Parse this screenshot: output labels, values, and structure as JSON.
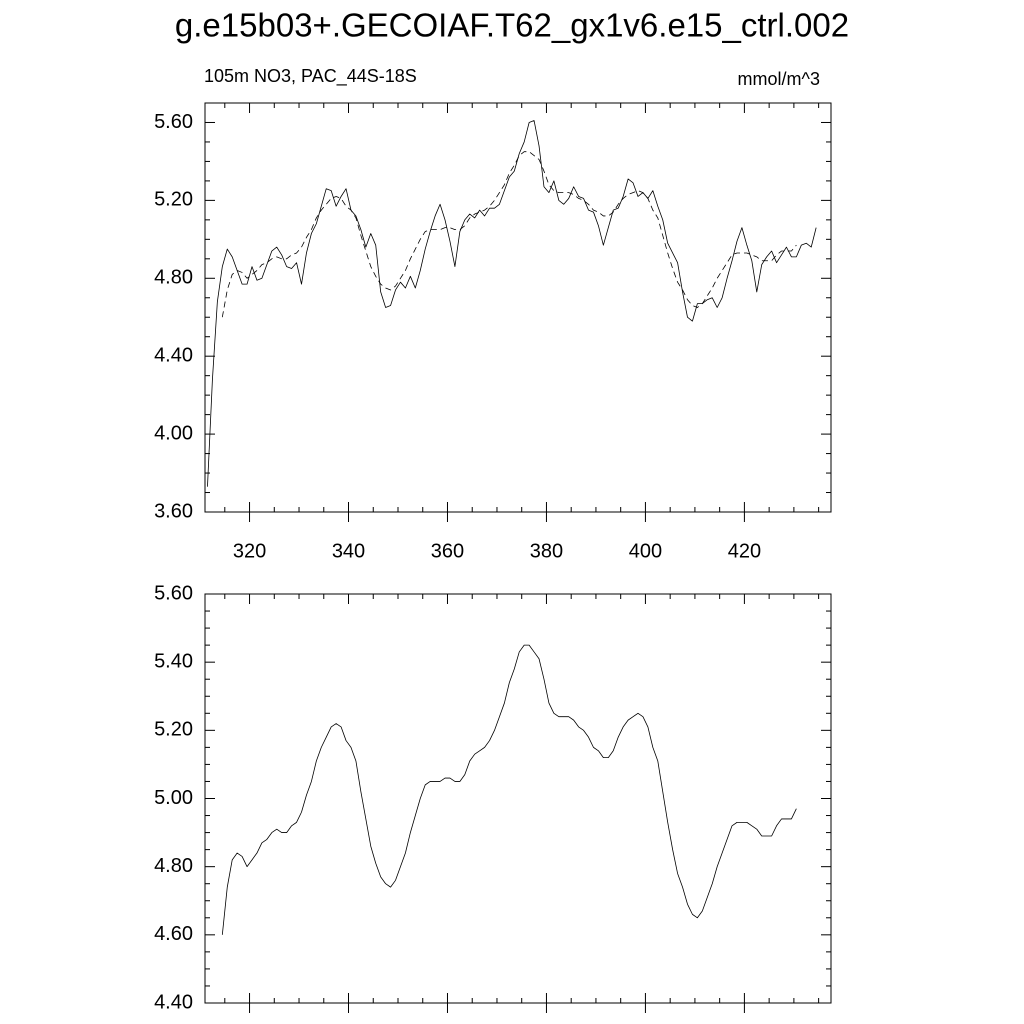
{
  "chart_data": [
    {
      "type": "line",
      "title": "g.e15b03+.GECOIAF.T62_gx1v6.e15_ctrl.002",
      "left_label": "105m NO3, PAC_44S-18S",
      "right_label": "mmol/m^3",
      "xlim": [
        311,
        437.5
      ],
      "ylim": [
        3.6,
        5.7
      ],
      "xticks": [
        320,
        340,
        360,
        380,
        400,
        420
      ],
      "yticks": [
        {
          "value": 3.6,
          "label": "3.60"
        },
        {
          "value": 4.0,
          "label": "4.00"
        },
        {
          "value": 4.4,
          "label": "4.40"
        },
        {
          "value": 4.8,
          "label": "4.80"
        },
        {
          "value": 5.2,
          "label": "5.20"
        },
        {
          "value": 5.6,
          "label": "5.60"
        }
      ],
      "series": [
        {
          "color": "#000000",
          "dashed": false,
          "x": [
            311.5,
            312.5,
            313.5,
            314.5,
            315.5,
            316.5,
            317.5,
            318.5,
            319.5,
            320.5,
            321.5,
            322.5,
            323.5,
            324.5,
            325.5,
            326.5,
            327.5,
            328.5,
            329.5,
            330.5,
            331.5,
            332.5,
            333.5,
            334.5,
            335.5,
            336.5,
            337.5,
            338.5,
            339.5,
            340.5,
            341.5,
            342.5,
            343.5,
            344.5,
            345.5,
            346.5,
            347.5,
            348.5,
            349.5,
            350.5,
            351.5,
            352.5,
            353.5,
            354.5,
            355.5,
            356.5,
            357.5,
            358.5,
            359.5,
            360.5,
            361.5,
            362.5,
            363.5,
            364.5,
            365.5,
            366.5,
            367.5,
            368.5,
            369.5,
            370.5,
            371.5,
            372.5,
            373.5,
            374.5,
            375.5,
            376.5,
            377.5,
            378.5,
            379.5,
            380.5,
            381.5,
            382.5,
            383.5,
            384.5,
            385.5,
            386.5,
            387.5,
            388.5,
            389.5,
            390.5,
            391.5,
            392.5,
            393.5,
            394.5,
            395.5,
            396.5,
            397.5,
            398.5,
            399.5,
            400.5,
            401.5,
            402.5,
            403.5,
            404.5,
            405.5,
            406.5,
            407.5,
            408.5,
            409.5,
            410.5,
            411.5,
            412.5,
            413.5,
            414.5,
            415.5,
            416.5,
            417.5,
            418.5,
            419.5,
            420.5,
            421.5,
            422.5,
            423.5,
            424.5,
            425.5,
            426.5,
            427.5,
            428.5,
            429.5,
            430.5,
            431.5,
            432.5,
            433.5,
            434.5
          ],
          "values": [
            3.73,
            4.28,
            4.68,
            4.86,
            4.95,
            4.91,
            4.84,
            4.77,
            4.77,
            4.86,
            4.79,
            4.8,
            4.87,
            4.94,
            4.96,
            4.92,
            4.86,
            4.85,
            4.88,
            4.77,
            4.93,
            5.03,
            5.08,
            5.17,
            5.26,
            5.25,
            5.17,
            5.22,
            5.26,
            5.15,
            5.12,
            5.05,
            4.96,
            5.03,
            4.97,
            4.73,
            4.65,
            4.66,
            4.74,
            4.78,
            4.75,
            4.81,
            4.75,
            4.84,
            4.95,
            5.04,
            5.12,
            5.18,
            5.1,
            4.99,
            4.86,
            5.04,
            5.1,
            5.13,
            5.11,
            5.15,
            5.12,
            5.16,
            5.16,
            5.18,
            5.25,
            5.32,
            5.35,
            5.44,
            5.5,
            5.6,
            5.61,
            5.48,
            5.27,
            5.24,
            5.3,
            5.2,
            5.18,
            5.21,
            5.27,
            5.22,
            5.21,
            5.15,
            5.14,
            5.07,
            4.97,
            5.06,
            5.15,
            5.16,
            5.22,
            5.31,
            5.29,
            5.22,
            5.24,
            5.21,
            5.25,
            5.17,
            5.1,
            4.98,
            4.93,
            4.88,
            4.73,
            4.6,
            4.58,
            4.67,
            4.67,
            4.69,
            4.7,
            4.65,
            4.7,
            4.8,
            4.89,
            4.99,
            5.06,
            4.97,
            4.89,
            4.73,
            4.87,
            4.91,
            4.94,
            4.88,
            4.92,
            4.96,
            4.91,
            4.91,
            4.97,
            4.98,
            4.96,
            5.06
          ]
        },
        {
          "color": "#000000",
          "dashed": true,
          "x": [
            314.5,
            315.5,
            316.5,
            317.5,
            318.5,
            319.5,
            320.5,
            321.5,
            322.5,
            323.5,
            324.5,
            325.5,
            326.5,
            327.5,
            328.5,
            329.5,
            330.5,
            331.5,
            332.5,
            333.5,
            334.5,
            335.5,
            336.5,
            337.5,
            338.5,
            339.5,
            340.5,
            341.5,
            342.5,
            343.5,
            344.5,
            345.5,
            346.5,
            347.5,
            348.5,
            349.5,
            350.5,
            351.5,
            352.5,
            353.5,
            354.5,
            355.5,
            356.5,
            357.5,
            358.5,
            359.5,
            360.5,
            361.5,
            362.5,
            363.5,
            364.5,
            365.5,
            366.5,
            367.5,
            368.5,
            369.5,
            370.5,
            371.5,
            372.5,
            373.5,
            374.5,
            375.5,
            376.5,
            377.5,
            378.5,
            379.5,
            380.5,
            381.5,
            382.5,
            383.5,
            384.5,
            385.5,
            386.5,
            387.5,
            388.5,
            389.5,
            390.5,
            391.5,
            392.5,
            393.5,
            394.5,
            395.5,
            396.5,
            397.5,
            398.5,
            399.5,
            400.5,
            401.5,
            402.5,
            403.5,
            404.5,
            405.5,
            406.5,
            407.5,
            408.5,
            409.5,
            410.5,
            411.5,
            412.5,
            413.5,
            414.5,
            415.5,
            416.5,
            417.5,
            418.5,
            419.5,
            420.5,
            421.5,
            422.5,
            423.5,
            424.5,
            425.5,
            426.5,
            427.5,
            428.5,
            429.5,
            430.5
          ],
          "values": [
            4.6,
            4.74,
            4.82,
            4.84,
            4.83,
            4.8,
            4.82,
            4.84,
            4.87,
            4.88,
            4.9,
            4.91,
            4.9,
            4.9,
            4.92,
            4.93,
            4.96,
            5.01,
            5.05,
            5.11,
            5.15,
            5.18,
            5.21,
            5.22,
            5.21,
            5.17,
            5.15,
            5.11,
            5.02,
            4.94,
            4.86,
            4.81,
            4.77,
            4.75,
            4.74,
            4.76,
            4.8,
            4.84,
            4.9,
            4.95,
            5.0,
            5.04,
            5.05,
            5.05,
            5.05,
            5.06,
            5.06,
            5.05,
            5.05,
            5.07,
            5.11,
            5.13,
            5.14,
            5.15,
            5.17,
            5.2,
            5.24,
            5.28,
            5.34,
            5.38,
            5.43,
            5.45,
            5.45,
            5.43,
            5.41,
            5.35,
            5.28,
            5.25,
            5.24,
            5.24,
            5.24,
            5.23,
            5.21,
            5.2,
            5.18,
            5.15,
            5.14,
            5.12,
            5.12,
            5.14,
            5.18,
            5.21,
            5.23,
            5.24,
            5.25,
            5.24,
            5.21,
            5.15,
            5.11,
            5.02,
            4.93,
            4.85,
            4.78,
            4.74,
            4.69,
            4.66,
            4.65,
            4.67,
            4.71,
            4.75,
            4.8,
            4.84,
            4.88,
            4.92,
            4.93,
            4.93,
            4.93,
            4.92,
            4.91,
            4.89,
            4.89,
            4.89,
            4.92,
            4.94,
            4.94,
            4.94,
            4.97
          ]
        }
      ]
    },
    {
      "type": "line",
      "xlim": [
        311,
        437.5
      ],
      "ylim": [
        4.4,
        5.6
      ],
      "xticks": [
        320,
        340,
        360,
        380,
        400,
        420
      ],
      "x_tick_labels": false,
      "yticks": [
        {
          "value": 4.4,
          "label": "4.40"
        },
        {
          "value": 4.6,
          "label": "4.60"
        },
        {
          "value": 4.8,
          "label": "4.80"
        },
        {
          "value": 5.0,
          "label": "5.00"
        },
        {
          "value": 5.2,
          "label": "5.20"
        },
        {
          "value": 5.4,
          "label": "5.40"
        },
        {
          "value": 5.6,
          "label": "5.60"
        }
      ],
      "series": [
        {
          "color": "#000000",
          "dashed": false,
          "x": [
            314.5,
            315.5,
            316.5,
            317.5,
            318.5,
            319.5,
            320.5,
            321.5,
            322.5,
            323.5,
            324.5,
            325.5,
            326.5,
            327.5,
            328.5,
            329.5,
            330.5,
            331.5,
            332.5,
            333.5,
            334.5,
            335.5,
            336.5,
            337.5,
            338.5,
            339.5,
            340.5,
            341.5,
            342.5,
            343.5,
            344.5,
            345.5,
            346.5,
            347.5,
            348.5,
            349.5,
            350.5,
            351.5,
            352.5,
            353.5,
            354.5,
            355.5,
            356.5,
            357.5,
            358.5,
            359.5,
            360.5,
            361.5,
            362.5,
            363.5,
            364.5,
            365.5,
            366.5,
            367.5,
            368.5,
            369.5,
            370.5,
            371.5,
            372.5,
            373.5,
            374.5,
            375.5,
            376.5,
            377.5,
            378.5,
            379.5,
            380.5,
            381.5,
            382.5,
            383.5,
            384.5,
            385.5,
            386.5,
            387.5,
            388.5,
            389.5,
            390.5,
            391.5,
            392.5,
            393.5,
            394.5,
            395.5,
            396.5,
            397.5,
            398.5,
            399.5,
            400.5,
            401.5,
            402.5,
            403.5,
            404.5,
            405.5,
            406.5,
            407.5,
            408.5,
            409.5,
            410.5,
            411.5,
            412.5,
            413.5,
            414.5,
            415.5,
            416.5,
            417.5,
            418.5,
            419.5,
            420.5,
            421.5,
            422.5,
            423.5,
            424.5,
            425.5,
            426.5,
            427.5,
            428.5,
            429.5,
            430.5
          ],
          "values": [
            4.6,
            4.74,
            4.82,
            4.84,
            4.83,
            4.8,
            4.82,
            4.84,
            4.87,
            4.88,
            4.9,
            4.91,
            4.9,
            4.9,
            4.92,
            4.93,
            4.96,
            5.01,
            5.05,
            5.11,
            5.15,
            5.18,
            5.21,
            5.22,
            5.21,
            5.17,
            5.15,
            5.11,
            5.02,
            4.94,
            4.86,
            4.81,
            4.77,
            4.75,
            4.74,
            4.76,
            4.8,
            4.84,
            4.9,
            4.95,
            5.0,
            5.04,
            5.05,
            5.05,
            5.05,
            5.06,
            5.06,
            5.05,
            5.05,
            5.07,
            5.11,
            5.13,
            5.14,
            5.15,
            5.17,
            5.2,
            5.24,
            5.28,
            5.34,
            5.38,
            5.43,
            5.45,
            5.45,
            5.43,
            5.41,
            5.35,
            5.28,
            5.25,
            5.24,
            5.24,
            5.24,
            5.23,
            5.21,
            5.2,
            5.18,
            5.15,
            5.14,
            5.12,
            5.12,
            5.14,
            5.18,
            5.21,
            5.23,
            5.24,
            5.25,
            5.24,
            5.21,
            5.15,
            5.11,
            5.02,
            4.93,
            4.85,
            4.78,
            4.74,
            4.69,
            4.66,
            4.65,
            4.67,
            4.71,
            4.75,
            4.8,
            4.84,
            4.88,
            4.92,
            4.93,
            4.93,
            4.93,
            4.92,
            4.91,
            4.89,
            4.89,
            4.89,
            4.92,
            4.94,
            4.94,
            4.94,
            4.97
          ]
        }
      ]
    }
  ]
}
